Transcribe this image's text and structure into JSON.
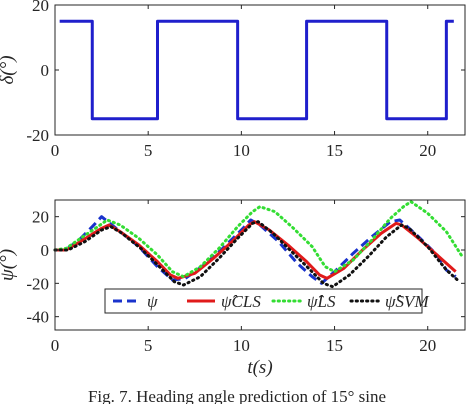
{
  "chart_data": [
    {
      "type": "line",
      "title": "",
      "xlabel": "",
      "ylabel": "δ(°)",
      "xlim": [
        0,
        22
      ],
      "ylim": [
        -20,
        20
      ],
      "xticks": [
        0,
        5,
        10,
        15,
        20
      ],
      "yticks": [
        -20,
        0,
        20
      ],
      "grid": false,
      "series": [
        {
          "color": "#1f1fcc",
          "style": "solid",
          "points": [
            [
              0.25,
              15
            ],
            [
              2.0,
              15
            ],
            [
              2.0,
              -15
            ],
            [
              5.5,
              -15
            ],
            [
              5.5,
              15
            ],
            [
              9.8,
              15
            ],
            [
              9.8,
              -15
            ],
            [
              13.5,
              -15
            ],
            [
              13.5,
              15
            ],
            [
              17.8,
              15
            ],
            [
              17.8,
              -15
            ],
            [
              21.0,
              -15
            ],
            [
              21.0,
              15
            ],
            [
              21.4,
              15
            ]
          ]
        }
      ]
    },
    {
      "type": "line",
      "title": "",
      "xlabel": "t(s)",
      "ylabel": "ψ(°)",
      "xlim": [
        0,
        22
      ],
      "ylim": [
        -48,
        30
      ],
      "xticks": [
        0,
        5,
        10,
        15,
        20
      ],
      "yticks": [
        -40,
        -20,
        0,
        20
      ],
      "grid": false,
      "legend_position": "bottom-center",
      "series": [
        {
          "name": "ψ",
          "color": "#1a33cc",
          "style": "dashed",
          "points": [
            [
              0,
              0
            ],
            [
              0.5,
              0
            ],
            [
              1.2,
              5
            ],
            [
              2.0,
              14
            ],
            [
              2.5,
              20
            ],
            [
              3.5,
              11
            ],
            [
              4.5,
              2
            ],
            [
              5.5,
              -10
            ],
            [
              6.3,
              -18
            ],
            [
              7.0,
              -17
            ],
            [
              8.0,
              -9
            ],
            [
              9.0,
              1
            ],
            [
              10.0,
              12
            ],
            [
              10.5,
              18
            ],
            [
              11.0,
              15
            ],
            [
              12.0,
              5
            ],
            [
              13.0,
              -8
            ],
            [
              13.8,
              -16
            ],
            [
              14.3,
              -20
            ],
            [
              15.0,
              -13
            ],
            [
              16.0,
              -2
            ],
            [
              17.0,
              8
            ],
            [
              18.0,
              17
            ],
            [
              18.5,
              18
            ],
            [
              19.5,
              8
            ],
            [
              20.5,
              -3
            ],
            [
              21.0,
              -12
            ],
            [
              21.5,
              -16
            ]
          ]
        },
        {
          "name": "ψ̂CLS",
          "color": "#e01a1a",
          "style": "solid",
          "points": [
            [
              0,
              0
            ],
            [
              0.6,
              0
            ],
            [
              1.5,
              6
            ],
            [
              2.5,
              13
            ],
            [
              2.9,
              15
            ],
            [
              3.5,
              11
            ],
            [
              4.5,
              3
            ],
            [
              5.5,
              -7
            ],
            [
              6.2,
              -15
            ],
            [
              6.6,
              -17
            ],
            [
              7.5,
              -14
            ],
            [
              8.5,
              -5
            ],
            [
              9.5,
              5
            ],
            [
              10.4,
              15
            ],
            [
              10.7,
              17
            ],
            [
              11.5,
              12
            ],
            [
              12.5,
              3
            ],
            [
              13.5,
              -7
            ],
            [
              14.2,
              -15
            ],
            [
              14.6,
              -17
            ],
            [
              15.5,
              -11
            ],
            [
              16.5,
              0
            ],
            [
              17.5,
              10
            ],
            [
              18.3,
              16
            ],
            [
              18.6,
              15
            ],
            [
              19.5,
              7
            ],
            [
              20.5,
              -3
            ],
            [
              21.5,
              -13
            ]
          ]
        },
        {
          "name": "ψ̂LS",
          "color": "#33dd33",
          "style": "dotted",
          "points": [
            [
              0,
              0
            ],
            [
              0.6,
              1
            ],
            [
              1.5,
              8
            ],
            [
              2.3,
              14
            ],
            [
              2.8,
              18
            ],
            [
              3.5,
              15
            ],
            [
              4.5,
              7
            ],
            [
              5.5,
              -3
            ],
            [
              6.3,
              -13
            ],
            [
              6.9,
              -16
            ],
            [
              7.8,
              -10
            ],
            [
              8.8,
              1
            ],
            [
              9.8,
              14
            ],
            [
              10.6,
              23
            ],
            [
              11.0,
              26
            ],
            [
              11.8,
              23
            ],
            [
              12.8,
              13
            ],
            [
              13.8,
              2
            ],
            [
              14.5,
              -10
            ],
            [
              15.0,
              -13
            ],
            [
              16.0,
              -6
            ],
            [
              17.0,
              6
            ],
            [
              18.0,
              19
            ],
            [
              18.7,
              26
            ],
            [
              19.1,
              29
            ],
            [
              20.0,
              22
            ],
            [
              21.0,
              11
            ],
            [
              21.8,
              -3
            ]
          ]
        },
        {
          "name": "ψ̂SVM",
          "color": "#111111",
          "style": "dotted",
          "points": [
            [
              0,
              0
            ],
            [
              0.7,
              0
            ],
            [
              1.6,
              5
            ],
            [
              2.5,
              12
            ],
            [
              3.0,
              14
            ],
            [
              3.6,
              10
            ],
            [
              4.6,
              1
            ],
            [
              5.6,
              -10
            ],
            [
              6.4,
              -19
            ],
            [
              6.9,
              -21
            ],
            [
              7.8,
              -16
            ],
            [
              8.8,
              -5
            ],
            [
              9.8,
              7
            ],
            [
              10.6,
              16
            ],
            [
              10.9,
              17
            ],
            [
              11.7,
              10
            ],
            [
              12.7,
              -1
            ],
            [
              13.7,
              -12
            ],
            [
              14.4,
              -20
            ],
            [
              14.9,
              -22
            ],
            [
              15.8,
              -15
            ],
            [
              16.8,
              -4
            ],
            [
              17.8,
              8
            ],
            [
              18.6,
              15
            ],
            [
              19.0,
              13
            ],
            [
              20.0,
              2
            ],
            [
              21.0,
              -12
            ],
            [
              21.6,
              -18
            ]
          ]
        }
      ]
    }
  ],
  "caption": "Fig. 7. Heading angle prediction of 15° sine"
}
